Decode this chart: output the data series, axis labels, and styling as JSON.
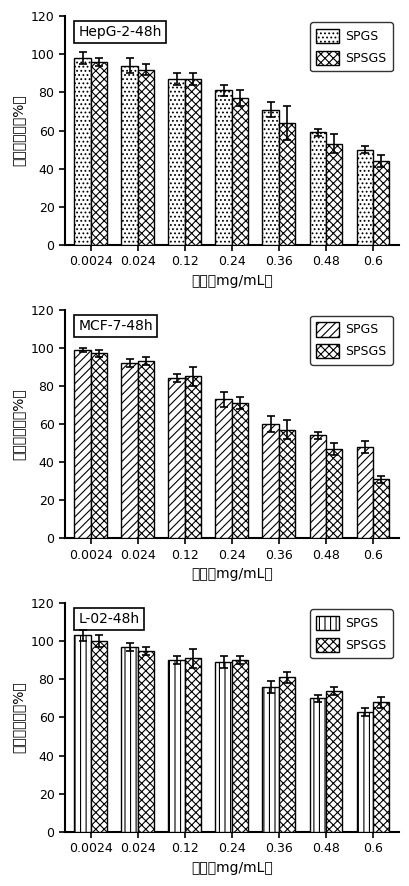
{
  "charts": [
    {
      "title": "HepG-2-48h",
      "spgs_values": [
        98,
        94,
        87,
        81,
        71,
        59,
        50
      ],
      "spgs_errors": [
        3,
        4,
        3,
        3,
        4,
        2,
        2
      ],
      "spsgs_values": [
        96,
        92,
        87,
        77,
        64,
        53,
        44
      ],
      "spsgs_errors": [
        2,
        3,
        3,
        4,
        9,
        5,
        3
      ],
      "hatch_spgs": "....",
      "hatch_spsgs": "xxxx",
      "legend_spgs": "SPGS",
      "legend_spsgs": "SPSGS"
    },
    {
      "title": "MCF-7-48h",
      "spgs_values": [
        99,
        92,
        84,
        73,
        60,
        54,
        48
      ],
      "spgs_errors": [
        1,
        2,
        2,
        4,
        4,
        2,
        3
      ],
      "spsgs_values": [
        97,
        93,
        85,
        71,
        57,
        47,
        31
      ],
      "spsgs_errors": [
        2,
        2,
        5,
        3,
        5,
        3,
        2
      ],
      "hatch_spgs": "////",
      "hatch_spsgs": "xxxx",
      "legend_spgs": "SPGS",
      "legend_spsgs": "SPSGS"
    },
    {
      "title": "L-02-48h",
      "spgs_values": [
        103,
        97,
        90,
        89,
        76,
        70,
        63
      ],
      "spgs_errors": [
        3,
        2,
        2,
        3,
        3,
        2,
        2
      ],
      "spsgs_values": [
        100,
        95,
        91,
        90,
        81,
        74,
        68
      ],
      "spsgs_errors": [
        3,
        2,
        5,
        2,
        3,
        2,
        3
      ],
      "hatch_spgs": "|||",
      "hatch_spsgs": "xxxx",
      "legend_spgs": "SPGS",
      "legend_spsgs": "SPSGS"
    }
  ],
  "categories": [
    "0.0024",
    "0.024",
    "0.12",
    "0.24",
    "0.36",
    "0.48",
    "0.6"
  ],
  "xlabel": "浓度（mg/mL）",
  "ylabel": "细胞存活率（%）",
  "ylim": [
    0,
    120
  ],
  "yticks": [
    0,
    20,
    40,
    60,
    80,
    100,
    120
  ],
  "bar_width": 0.35,
  "bar_edge_color": "#000000",
  "bar_fill_color": "#ffffff",
  "error_color": "#000000",
  "capsize": 3,
  "background_color": "#ffffff",
  "axis_linewidth": 1.5,
  "font_size_label": 10,
  "font_size_tick": 9,
  "font_size_title": 10,
  "font_size_legend": 9
}
